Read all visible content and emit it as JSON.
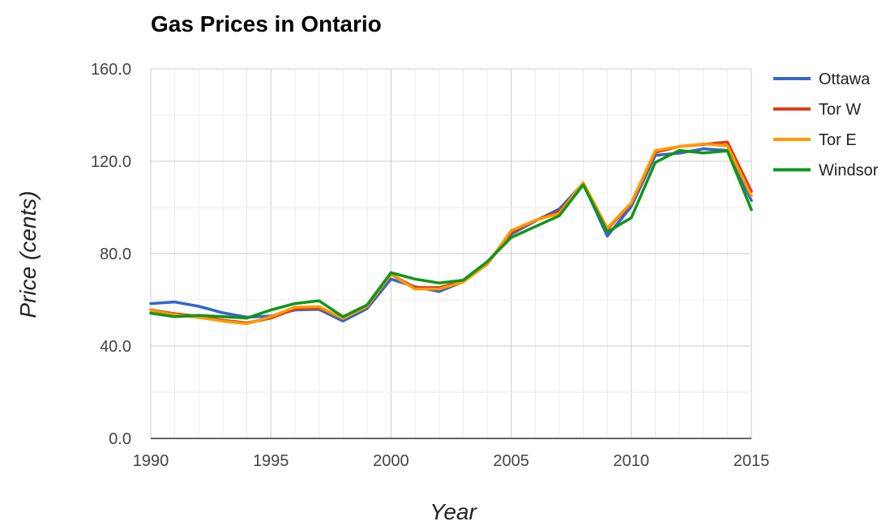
{
  "chart_data": {
    "type": "line",
    "title": "Gas Prices in Ontario",
    "xlabel": "Year",
    "ylabel": "Price (cents)",
    "xlim": [
      1990,
      2015
    ],
    "ylim": [
      0,
      160
    ],
    "x_ticks": [
      "1990",
      "1995",
      "2000",
      "2005",
      "2010",
      "2015"
    ],
    "y_ticks": [
      "0.0",
      "40.0",
      "80.0",
      "120.0",
      "160.0"
    ],
    "grid": true,
    "legend_position": "right",
    "x": [
      1990,
      1991,
      1992,
      1993,
      1994,
      1995,
      1996,
      1997,
      1998,
      1999,
      2000,
      2001,
      2002,
      2003,
      2004,
      2005,
      2006,
      2007,
      2008,
      2009,
      2010,
      2011,
      2012,
      2013,
      2014,
      2015
    ],
    "series": [
      {
        "name": "Ottawa",
        "color": "#3366cc",
        "values": [
          58.4,
          59.1,
          57.2,
          54.4,
          52.5,
          53.0,
          55.6,
          55.9,
          50.8,
          56.2,
          69.0,
          65.7,
          63.6,
          67.8,
          75.9,
          88.4,
          94.1,
          99.3,
          110.4,
          87.6,
          100.4,
          122.6,
          123.5,
          125.4,
          124.7,
          103.0
        ]
      },
      {
        "name": "Tor W",
        "color": "#dc3912",
        "values": [
          55.6,
          54.0,
          52.8,
          51.2,
          50.0,
          52.1,
          56.1,
          56.5,
          52.1,
          57.0,
          71.0,
          65.3,
          65.3,
          68.1,
          75.4,
          89.2,
          94.4,
          98.2,
          110.4,
          90.6,
          101.7,
          123.9,
          126.4,
          127.3,
          128.3,
          107.0
        ]
      },
      {
        "name": "Tor E",
        "color": "#ff9900",
        "values": [
          55.4,
          53.6,
          52.4,
          50.8,
          49.7,
          52.7,
          56.8,
          57.0,
          51.9,
          57.2,
          71.0,
          64.7,
          64.7,
          67.7,
          75.4,
          90.0,
          94.4,
          97.4,
          110.7,
          91.1,
          102.0,
          124.6,
          126.4,
          127.5,
          126.7,
          105.0
        ]
      },
      {
        "name": "Windsor",
        "color": "#109618",
        "values": [
          54.2,
          52.7,
          53.3,
          52.7,
          52.1,
          55.6,
          58.4,
          59.6,
          52.7,
          57.8,
          71.8,
          69.0,
          67.3,
          68.5,
          76.5,
          87.0,
          91.7,
          96.4,
          109.8,
          89.4,
          95.5,
          119.5,
          124.7,
          123.6,
          124.5,
          99.0
        ]
      }
    ]
  }
}
